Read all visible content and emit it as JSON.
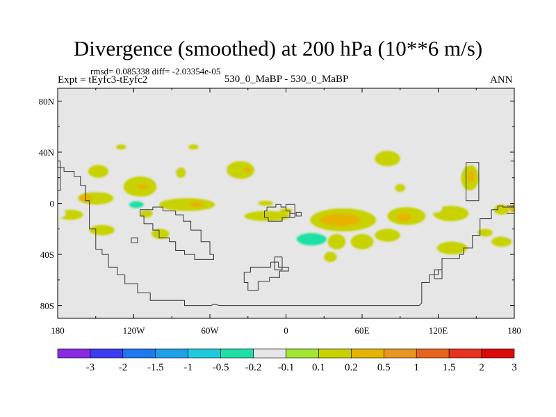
{
  "chart_data": {
    "type": "heatmap",
    "title": "Divergence (smoothed) at 200 hPa (10**6 m/s)",
    "stats": "rmsd= 0.085338 diff= -2.03354e-05",
    "experiment": "Expt = tEyfc3-tEyfc2",
    "cases": "530_0_MaBP - 530_0_MaBP",
    "season": "ANN",
    "xlim": [
      -180,
      180
    ],
    "ylim": [
      -90,
      90
    ],
    "x_ticks": [
      {
        "value": -180,
        "label": "180"
      },
      {
        "value": -120,
        "label": "120W"
      },
      {
        "value": -60,
        "label": "60W"
      },
      {
        "value": 0,
        "label": "0"
      },
      {
        "value": 60,
        "label": "60E"
      },
      {
        "value": 120,
        "label": "120E"
      },
      {
        "value": 180,
        "label": "180"
      }
    ],
    "y_ticks": [
      {
        "value": 80,
        "label": "80N"
      },
      {
        "value": 40,
        "label": "40N"
      },
      {
        "value": 0,
        "label": "0"
      },
      {
        "value": -40,
        "label": "40S"
      },
      {
        "value": -80,
        "label": "80S"
      }
    ],
    "colorbar": {
      "colors": [
        "#8a2be2",
        "#3c3cf0",
        "#1e78ee",
        "#1ea0e6",
        "#1ecadb",
        "#1ee0a6",
        "#e6e6e6",
        "#a0e632",
        "#c8d200",
        "#e6b400",
        "#e6961e",
        "#e6641e",
        "#e6321e",
        "#dc0a0a"
      ],
      "labels": [
        "-3",
        "-2",
        "-1.5",
        "-1",
        "-0.5",
        "-0.2",
        "-0.1",
        "0.1",
        "0.2",
        "0.5",
        "1",
        "1.5",
        "2",
        "3"
      ]
    },
    "blobs": [
      {
        "lon": -130,
        "lat": 44,
        "rlon": 4,
        "rlat": 2,
        "value": 0.15
      },
      {
        "lon": -100,
        "lat": 44,
        "rlon": 7,
        "rlat": 2,
        "value": -0.15
      },
      {
        "lon": -73,
        "lat": 44,
        "rlon": 4,
        "rlat": 2,
        "value": 0.15
      },
      {
        "lon": -148,
        "lat": 25,
        "rlon": 8,
        "rlat": 5,
        "value": 0.15
      },
      {
        "lon": -150,
        "lat": 9,
        "rlon": 5,
        "rlat": 3,
        "value": -0.15
      },
      {
        "lon": -115,
        "lat": 13,
        "rlon": 13,
        "rlat": 8,
        "value": 0.15
      },
      {
        "lon": -113,
        "lat": 13,
        "rlon": 4,
        "rlat": 2,
        "value": 0.35
      },
      {
        "lon": -93,
        "lat": 26,
        "rlon": 9,
        "rlat": 6,
        "value": -0.15
      },
      {
        "lon": -83,
        "lat": 24,
        "rlon": 4,
        "rlat": 4,
        "value": 0.15
      },
      {
        "lon": -70,
        "lat": 19,
        "rlon": 7,
        "rlat": 5,
        "value": -0.15
      },
      {
        "lon": -62,
        "lat": 10,
        "rlon": 5,
        "rlat": 3,
        "value": -0.15
      },
      {
        "lon": -42,
        "lat": 23,
        "rlon": 9,
        "rlat": 5,
        "value": -0.15
      },
      {
        "lon": -36,
        "lat": 26,
        "rlon": 11,
        "rlat": 7,
        "value": 0.15
      },
      {
        "lon": -30,
        "lat": 26,
        "rlon": 3,
        "rlat": 2,
        "value": 0.35
      },
      {
        "lon": -5,
        "lat": 19,
        "rlon": 4,
        "rlat": 3,
        "value": -0.15
      },
      {
        "lon": 28,
        "lat": 24,
        "rlon": 6,
        "rlat": 4,
        "value": -0.15
      },
      {
        "lon": 54,
        "lat": 10,
        "rlon": 5,
        "rlat": 3,
        "value": -0.15
      },
      {
        "lon": 73,
        "lat": 17,
        "rlon": 7,
        "rlat": 6,
        "value": -0.15
      },
      {
        "lon": 90,
        "lat": 12,
        "rlon": 4,
        "rlat": 3,
        "value": 0.15
      },
      {
        "lon": 80,
        "lat": 35,
        "rlon": 10,
        "rlat": 6,
        "value": 0.15
      },
      {
        "lon": 107,
        "lat": 23,
        "rlon": 10,
        "rlat": 5,
        "value": -0.15
      },
      {
        "lon": 135,
        "lat": 30,
        "rlon": 10,
        "rlat": 7,
        "value": -0.15
      },
      {
        "lon": 145,
        "lat": 20,
        "rlon": 7,
        "rlat": 10,
        "value": 0.15
      },
      {
        "lon": 146,
        "lat": 21,
        "rlon": 3,
        "rlat": 4,
        "value": 0.35
      },
      {
        "lon": 153,
        "lat": 8,
        "rlon": 6,
        "rlat": 3,
        "value": -0.15
      },
      {
        "lon": 174,
        "lat": 25,
        "rlon": 5,
        "rlat": 4,
        "value": -0.15
      },
      {
        "lon": 176,
        "lat": 5,
        "rlon": 4,
        "rlat": 4,
        "value": -0.15
      },
      {
        "lon": -150,
        "lat": 4,
        "rlon": 14,
        "rlat": 5,
        "value": 0.15
      },
      {
        "lon": -158,
        "lat": 4,
        "rlon": 5,
        "rlat": 3,
        "value": 0.35
      },
      {
        "lon": -173,
        "lat": 1,
        "rlon": 8,
        "rlat": 5,
        "value": -0.15
      },
      {
        "lon": -120,
        "lat": -1,
        "rlon": 16,
        "rlat": 6,
        "value": -0.15
      },
      {
        "lon": -118,
        "lat": -1,
        "rlon": 6,
        "rlat": 3,
        "value": -0.35
      },
      {
        "lon": -110,
        "lat": -8,
        "rlon": 5,
        "rlat": 3,
        "value": 0.15
      },
      {
        "lon": -78,
        "lat": -1,
        "rlon": 22,
        "rlat": 5,
        "value": 0.15
      },
      {
        "lon": -70,
        "lat": -1,
        "rlon": 6,
        "rlat": 2,
        "value": 0.35
      },
      {
        "lon": -16,
        "lat": 0,
        "rlon": 6,
        "rlat": 2,
        "value": 0.15
      },
      {
        "lon": -15,
        "lat": -10,
        "rlon": 18,
        "rlat": 4,
        "value": 0.15
      },
      {
        "lon": 0,
        "lat": -6,
        "rlon": 5,
        "rlat": 2,
        "value": 0.15
      },
      {
        "lon": 8,
        "lat": -10,
        "rlon": 4,
        "rlat": 3,
        "value": -0.15
      },
      {
        "lon": 45,
        "lat": -13,
        "rlon": 26,
        "rlat": 9,
        "value": 0.15
      },
      {
        "lon": 43,
        "lat": -13,
        "rlon": 16,
        "rlat": 5,
        "value": 0.35
      },
      {
        "lon": 95,
        "lat": -10,
        "rlon": 15,
        "rlat": 7,
        "value": 0.15
      },
      {
        "lon": 93,
        "lat": -11,
        "rlon": 6,
        "rlat": 3,
        "value": 0.35
      },
      {
        "lon": 130,
        "lat": -8,
        "rlon": 14,
        "rlat": 6,
        "value": 0.15
      },
      {
        "lon": 118,
        "lat": -4,
        "rlon": 5,
        "rlat": 3,
        "value": -0.15
      },
      {
        "lon": 170,
        "lat": -5,
        "rlon": 6,
        "rlat": 4,
        "value": 0.15
      },
      {
        "lon": 179,
        "lat": -4,
        "rlon": 3,
        "rlat": 3,
        "value": 0.35
      },
      {
        "lon": -170,
        "lat": -9,
        "rlon": 10,
        "rlat": 4,
        "value": 0.15
      },
      {
        "lon": -178,
        "lat": -8,
        "rlon": 4,
        "rlat": 3,
        "value": -0.15
      },
      {
        "lon": -175,
        "lat": -20,
        "rlon": 5,
        "rlat": 3,
        "value": -0.15
      },
      {
        "lon": -145,
        "lat": -21,
        "rlon": 10,
        "rlat": 4,
        "value": 0.15
      },
      {
        "lon": -125,
        "lat": -19,
        "rlon": 10,
        "rlat": 5,
        "value": -0.15
      },
      {
        "lon": -115,
        "lat": -15,
        "rlon": 5,
        "rlat": 2,
        "value": -0.15
      },
      {
        "lon": -99,
        "lat": -24,
        "rlon": 7,
        "rlat": 4,
        "value": 0.15
      },
      {
        "lon": -15,
        "lat": -22,
        "rlon": 18,
        "rlat": 7,
        "value": -0.15
      },
      {
        "lon": 10,
        "lat": -25,
        "rlon": 20,
        "rlat": 7,
        "value": -0.15
      },
      {
        "lon": 20,
        "lat": -28,
        "rlon": 12,
        "rlat": 5,
        "value": -0.35
      },
      {
        "lon": 40,
        "lat": -30,
        "rlon": 7,
        "rlat": 6,
        "value": 0.15
      },
      {
        "lon": 60,
        "lat": -30,
        "rlon": 9,
        "rlat": 6,
        "value": 0.15
      },
      {
        "lon": 35,
        "lat": -42,
        "rlon": 5,
        "rlat": 4,
        "value": 0.15
      },
      {
        "lon": 80,
        "lat": -25,
        "rlon": 10,
        "rlat": 5,
        "value": 0.15
      },
      {
        "lon": 140,
        "lat": -24,
        "rlon": 14,
        "rlat": 6,
        "value": -0.15
      },
      {
        "lon": 157,
        "lat": -23,
        "rlon": 6,
        "rlat": 3,
        "value": 0.15
      },
      {
        "lon": 175,
        "lat": -24,
        "rlon": 4,
        "rlat": 4,
        "value": -0.15
      },
      {
        "lon": 131,
        "lat": -35,
        "rlon": 12,
        "rlat": 5,
        "value": 0.15
      },
      {
        "lon": 170,
        "lat": -30,
        "rlon": 8,
        "rlat": 4,
        "value": 0.15
      }
    ],
    "coastlines": [
      [
        [
          -180,
          28
        ],
        [
          -175,
          28
        ],
        [
          -175,
          25
        ],
        [
          -167,
          25
        ],
        [
          -167,
          21
        ],
        [
          -162,
          21
        ],
        [
          -162,
          14
        ],
        [
          -158,
          14
        ],
        [
          -158,
          2
        ],
        [
          -155,
          2
        ],
        [
          -155,
          -20
        ],
        [
          -150,
          -20
        ],
        [
          -150,
          -36
        ],
        [
          -145,
          -36
        ],
        [
          -145,
          -40
        ],
        [
          -140,
          -40
        ],
        [
          -140,
          -50
        ],
        [
          -133,
          -50
        ],
        [
          -133,
          -56
        ],
        [
          -127,
          -56
        ],
        [
          -127,
          -63
        ],
        [
          -117,
          -63
        ],
        [
          -117,
          -70
        ],
        [
          -107,
          -70
        ],
        [
          -107,
          -76
        ],
        [
          -80,
          -76
        ],
        [
          -80,
          -80
        ],
        [
          -59,
          -80
        ],
        [
          -57,
          -79
        ],
        [
          -52,
          -80
        ],
        [
          -12,
          -80
        ],
        [
          40,
          -80
        ],
        [
          105,
          -80
        ],
        [
          107,
          -78
        ],
        [
          107,
          -62
        ],
        [
          113,
          -62
        ],
        [
          113,
          -56
        ],
        [
          120,
          -56
        ],
        [
          120,
          -52
        ],
        [
          123,
          -52
        ],
        [
          123,
          -43
        ],
        [
          137,
          -43
        ],
        [
          137,
          -40
        ],
        [
          140,
          -40
        ],
        [
          140,
          -35
        ],
        [
          147,
          -35
        ],
        [
          147,
          -25
        ],
        [
          153,
          -25
        ],
        [
          153,
          -12
        ],
        [
          162,
          -12
        ],
        [
          162,
          -5
        ],
        [
          167,
          -5
        ],
        [
          167,
          -2
        ],
        [
          171,
          -2
        ],
        [
          171,
          -3
        ],
        [
          180,
          -3
        ]
      ],
      [
        [
          -110,
          -5
        ],
        [
          -115,
          -5
        ],
        [
          -115,
          -10
        ],
        [
          -112,
          -10
        ],
        [
          -112,
          -16
        ],
        [
          -105,
          -16
        ],
        [
          -105,
          -21
        ],
        [
          -100,
          -21
        ],
        [
          -100,
          -27
        ],
        [
          -92,
          -27
        ],
        [
          -92,
          -30
        ],
        [
          -87,
          -30
        ],
        [
          -87,
          -37
        ],
        [
          -80,
          -37
        ],
        [
          -80,
          -40
        ],
        [
          -72,
          -40
        ],
        [
          -72,
          -44
        ],
        [
          -57,
          -44
        ],
        [
          -57,
          -40
        ],
        [
          -60,
          -40
        ],
        [
          -60,
          -30
        ],
        [
          -67,
          -30
        ],
        [
          -67,
          -21
        ],
        [
          -75,
          -21
        ],
        [
          -75,
          -14
        ],
        [
          -81,
          -14
        ],
        [
          -81,
          -9
        ],
        [
          -87,
          -9
        ],
        [
          -87,
          -6
        ],
        [
          -97,
          -6
        ],
        [
          -97,
          -3
        ],
        [
          -105,
          -3
        ],
        [
          -105,
          -5
        ],
        [
          -110,
          -5
        ]
      ],
      [
        [
          -122,
          -27
        ],
        [
          -117,
          -27
        ],
        [
          -117,
          -31
        ],
        [
          -122,
          -31
        ],
        [
          -122,
          -27
        ]
      ],
      [
        [
          -12,
          -46
        ],
        [
          -6,
          -46
        ],
        [
          -6,
          -50
        ],
        [
          2,
          -50
        ],
        [
          2,
          -53
        ],
        [
          -5,
          -53
        ],
        [
          -5,
          -58
        ],
        [
          -13,
          -58
        ],
        [
          -13,
          -61
        ],
        [
          -22,
          -61
        ],
        [
          -22,
          -68
        ],
        [
          -30,
          -68
        ],
        [
          -30,
          -62
        ],
        [
          -33,
          -62
        ],
        [
          -33,
          -54
        ],
        [
          -28,
          -54
        ],
        [
          -28,
          -50
        ],
        [
          -12,
          -50
        ],
        [
          -12,
          -46
        ]
      ],
      [
        [
          -3,
          -42
        ],
        [
          -9,
          -42
        ],
        [
          -9,
          -52
        ],
        [
          -3,
          -52
        ],
        [
          -3,
          -42
        ]
      ],
      [
        [
          -15,
          -3
        ],
        [
          -8,
          -3
        ],
        [
          -8,
          -1
        ],
        [
          -4,
          -1
        ],
        [
          -4,
          -3
        ],
        [
          0,
          -3
        ],
        [
          0,
          -6
        ],
        [
          3,
          -6
        ],
        [
          3,
          -11
        ],
        [
          -3,
          -11
        ],
        [
          -3,
          -14
        ],
        [
          -14,
          -14
        ],
        [
          -14,
          -11
        ],
        [
          -17,
          -11
        ],
        [
          -17,
          -6
        ],
        [
          -15,
          -6
        ],
        [
          -15,
          -3
        ]
      ],
      [
        [
          0,
          -3
        ],
        [
          0,
          -1
        ],
        [
          7,
          -1
        ],
        [
          7,
          -8
        ],
        [
          3,
          -8
        ],
        [
          3,
          -11
        ],
        [
          7,
          -11
        ],
        [
          7,
          -8
        ]
      ],
      [
        [
          12,
          -7
        ],
        [
          8,
          -7
        ],
        [
          8,
          -10
        ],
        [
          12,
          -10
        ],
        [
          12,
          -7
        ]
      ],
      [
        [
          142,
          32
        ],
        [
          152,
          32
        ],
        [
          152,
          2
        ],
        [
          142,
          2
        ],
        [
          142,
          32
        ]
      ],
      [
        [
          177,
          33
        ],
        [
          180,
          33
        ]
      ],
      [
        [
          -180,
          33
        ],
        [
          -178,
          33
        ],
        [
          -178,
          10
        ],
        [
          -180,
          10
        ]
      ],
      [
        [
          174,
          -2
        ],
        [
          180,
          -2
        ],
        [
          180,
          -8
        ],
        [
          174,
          -8
        ]
      ],
      [
        [
          117,
          -59
        ],
        [
          123,
          -59
        ],
        [
          123,
          -52
        ],
        [
          117,
          -52
        ],
        [
          117,
          -59
        ]
      ]
    ]
  }
}
